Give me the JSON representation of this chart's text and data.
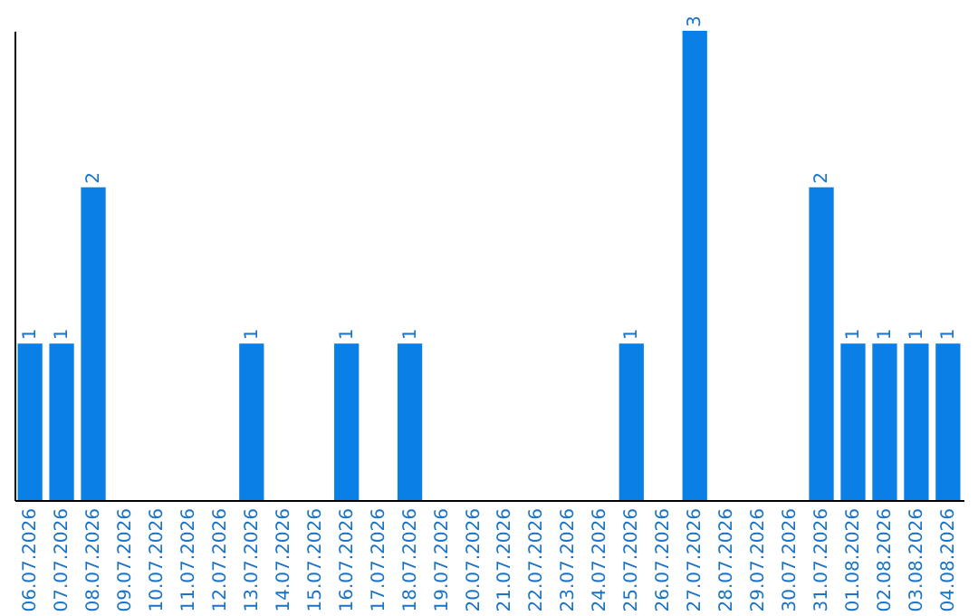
{
  "chart_data": {
    "type": "bar",
    "categories": [
      "06.07.2026",
      "07.07.2026",
      "08.07.2026",
      "09.07.2026",
      "10.07.2026",
      "11.07.2026",
      "12.07.2026",
      "13.07.2026",
      "14.07.2026",
      "15.07.2026",
      "16.07.2026",
      "17.07.2026",
      "18.07.2026",
      "19.07.2026",
      "20.07.2026",
      "21.07.2026",
      "22.07.2026",
      "23.07.2026",
      "24.07.2026",
      "25.07.2026",
      "26.07.2026",
      "27.07.2026",
      "28.07.2026",
      "29.07.2026",
      "30.07.2026",
      "31.07.2026",
      "01.08.2026",
      "02.08.2026",
      "03.08.2026",
      "04.08.2026"
    ],
    "values": [
      1,
      1,
      2,
      0,
      0,
      0,
      0,
      1,
      0,
      0,
      1,
      0,
      1,
      0,
      0,
      0,
      0,
      0,
      0,
      1,
      0,
      3,
      0,
      0,
      0,
      2,
      1,
      1,
      1,
      1
    ],
    "value_labels": [
      "1",
      "1",
      "2",
      null,
      null,
      null,
      null,
      "1",
      null,
      null,
      "1",
      null,
      "1",
      null,
      null,
      null,
      null,
      null,
      null,
      "1",
      null,
      "3",
      null,
      null,
      null,
      "2",
      "1",
      "1",
      "1",
      "1"
    ],
    "color": "#0a7fe6",
    "grid": false
  }
}
